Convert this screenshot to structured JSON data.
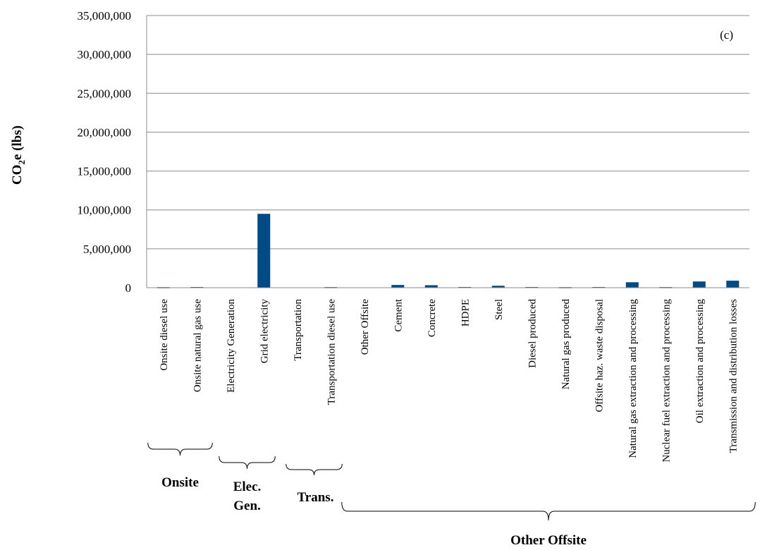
{
  "chart_data": {
    "type": "bar",
    "panel_label": "(c)",
    "ylabel_parts": [
      "CO",
      "2",
      "e (lbs)"
    ],
    "xlabel": "",
    "ylim": [
      0,
      35000000
    ],
    "yticks": [
      0,
      5000000,
      10000000,
      15000000,
      20000000,
      25000000,
      30000000,
      35000000
    ],
    "ytick_labels": [
      "0",
      "5,000,000",
      "10,000,000",
      "15,000,000",
      "20,000,000",
      "25,000,000",
      "30,000,000",
      "35,000,000"
    ],
    "grid": true,
    "bar_color": "#004a86",
    "categories": [
      "Onsite diesel use",
      "Onsite natural gas use",
      "Electricity Generation",
      "Grid electricity",
      "Transportation",
      "Transportation diesel use",
      "Other Offsite",
      "Cement",
      "Concrete",
      "HDPE",
      "Steel",
      "Diesel produced",
      "Natural gas produced",
      "Offsite haz. waste disposal",
      "Natural gas extraction and processing",
      "Nuclear fuel extraction and processing",
      "Oil extraction and processing",
      "Transmission and distribution losses"
    ],
    "values": [
      70000,
      90000,
      0,
      9500000,
      0,
      80000,
      0,
      350000,
      320000,
      90000,
      250000,
      90000,
      70000,
      90000,
      700000,
      80000,
      800000,
      900000
    ],
    "groups": [
      {
        "label_lines": [
          "Onsite"
        ],
        "start": 0,
        "end": 1
      },
      {
        "label_lines": [
          "Elec.",
          "Gen."
        ],
        "start": 2,
        "end": 3
      },
      {
        "label_lines": [
          "Trans."
        ],
        "start": 4,
        "end": 5
      },
      {
        "label_lines": [
          "Other Offsite"
        ],
        "start": 6,
        "end": 17
      }
    ]
  }
}
